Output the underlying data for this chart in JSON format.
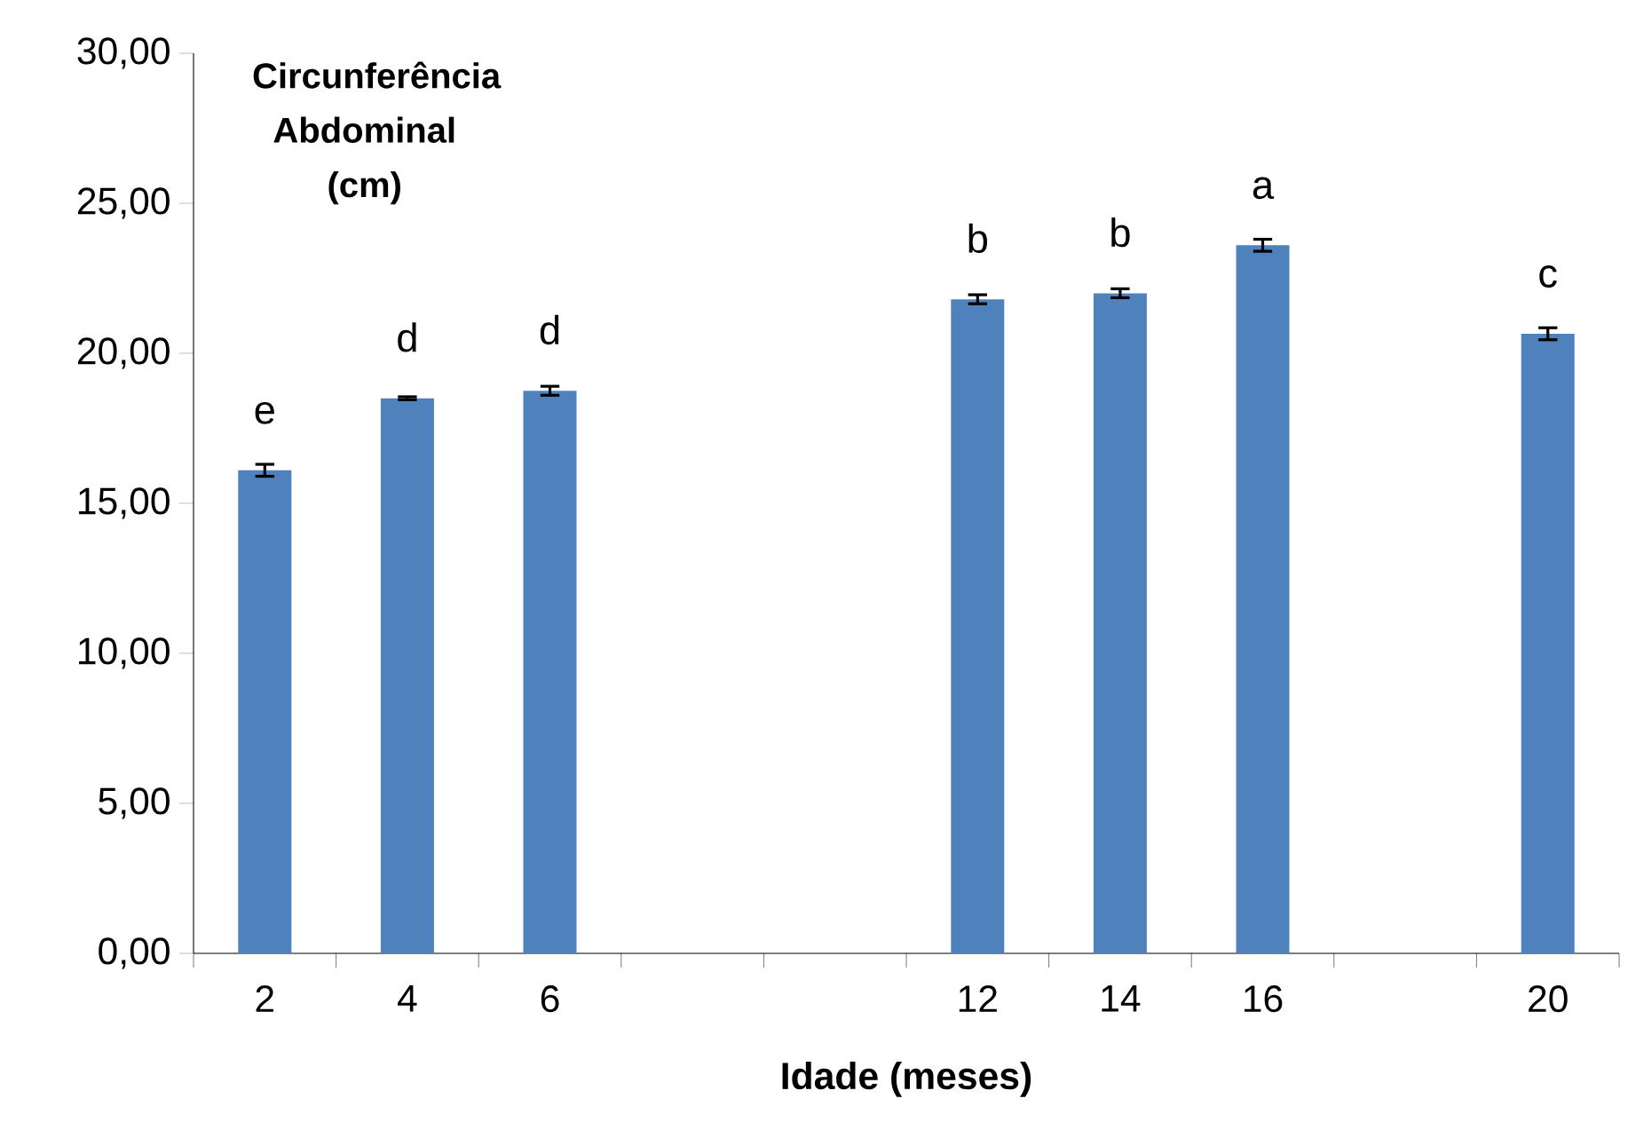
{
  "chart_data": {
    "type": "bar",
    "ylabel": "Circunferência Abdominal (cm)",
    "xlabel": "Idade (meses)",
    "categories": [
      "2",
      "4",
      "6",
      null,
      null,
      "12",
      "14",
      "16",
      null,
      "20"
    ],
    "values": [
      16.1,
      18.5,
      18.75,
      null,
      null,
      21.8,
      22.0,
      23.6,
      null,
      20.65
    ],
    "errors": [
      0.2,
      0.05,
      0.15,
      null,
      null,
      0.15,
      0.15,
      0.2,
      null,
      0.2
    ],
    "color": "#4f81bd",
    "ylim": [
      0,
      30
    ],
    "yticks": [
      {
        "value": 0,
        "label": "0,00"
      },
      {
        "value": 5,
        "label": "5,00"
      },
      {
        "value": 10,
        "label": "10,00"
      },
      {
        "value": 15,
        "label": "15,00"
      },
      {
        "value": 20,
        "label": "20,00"
      },
      {
        "value": 25,
        "label": "25,00"
      },
      {
        "value": 30,
        "label": "30,00"
      }
    ],
    "grid": false,
    "annotations": [
      {
        "text": "e",
        "x": "2",
        "y": 16.1
      },
      {
        "text": "d",
        "x": "4",
        "y": 18.5
      },
      {
        "text": "d",
        "x": "6",
        "y": 18.75
      },
      {
        "text": "b",
        "x": "12",
        "y": 21.8
      },
      {
        "text": "b",
        "x": "14",
        "y": 22.0
      },
      {
        "text": "a",
        "x": "16",
        "y": 23.6
      },
      {
        "text": "c",
        "x": "20",
        "y": 20.65
      }
    ]
  }
}
